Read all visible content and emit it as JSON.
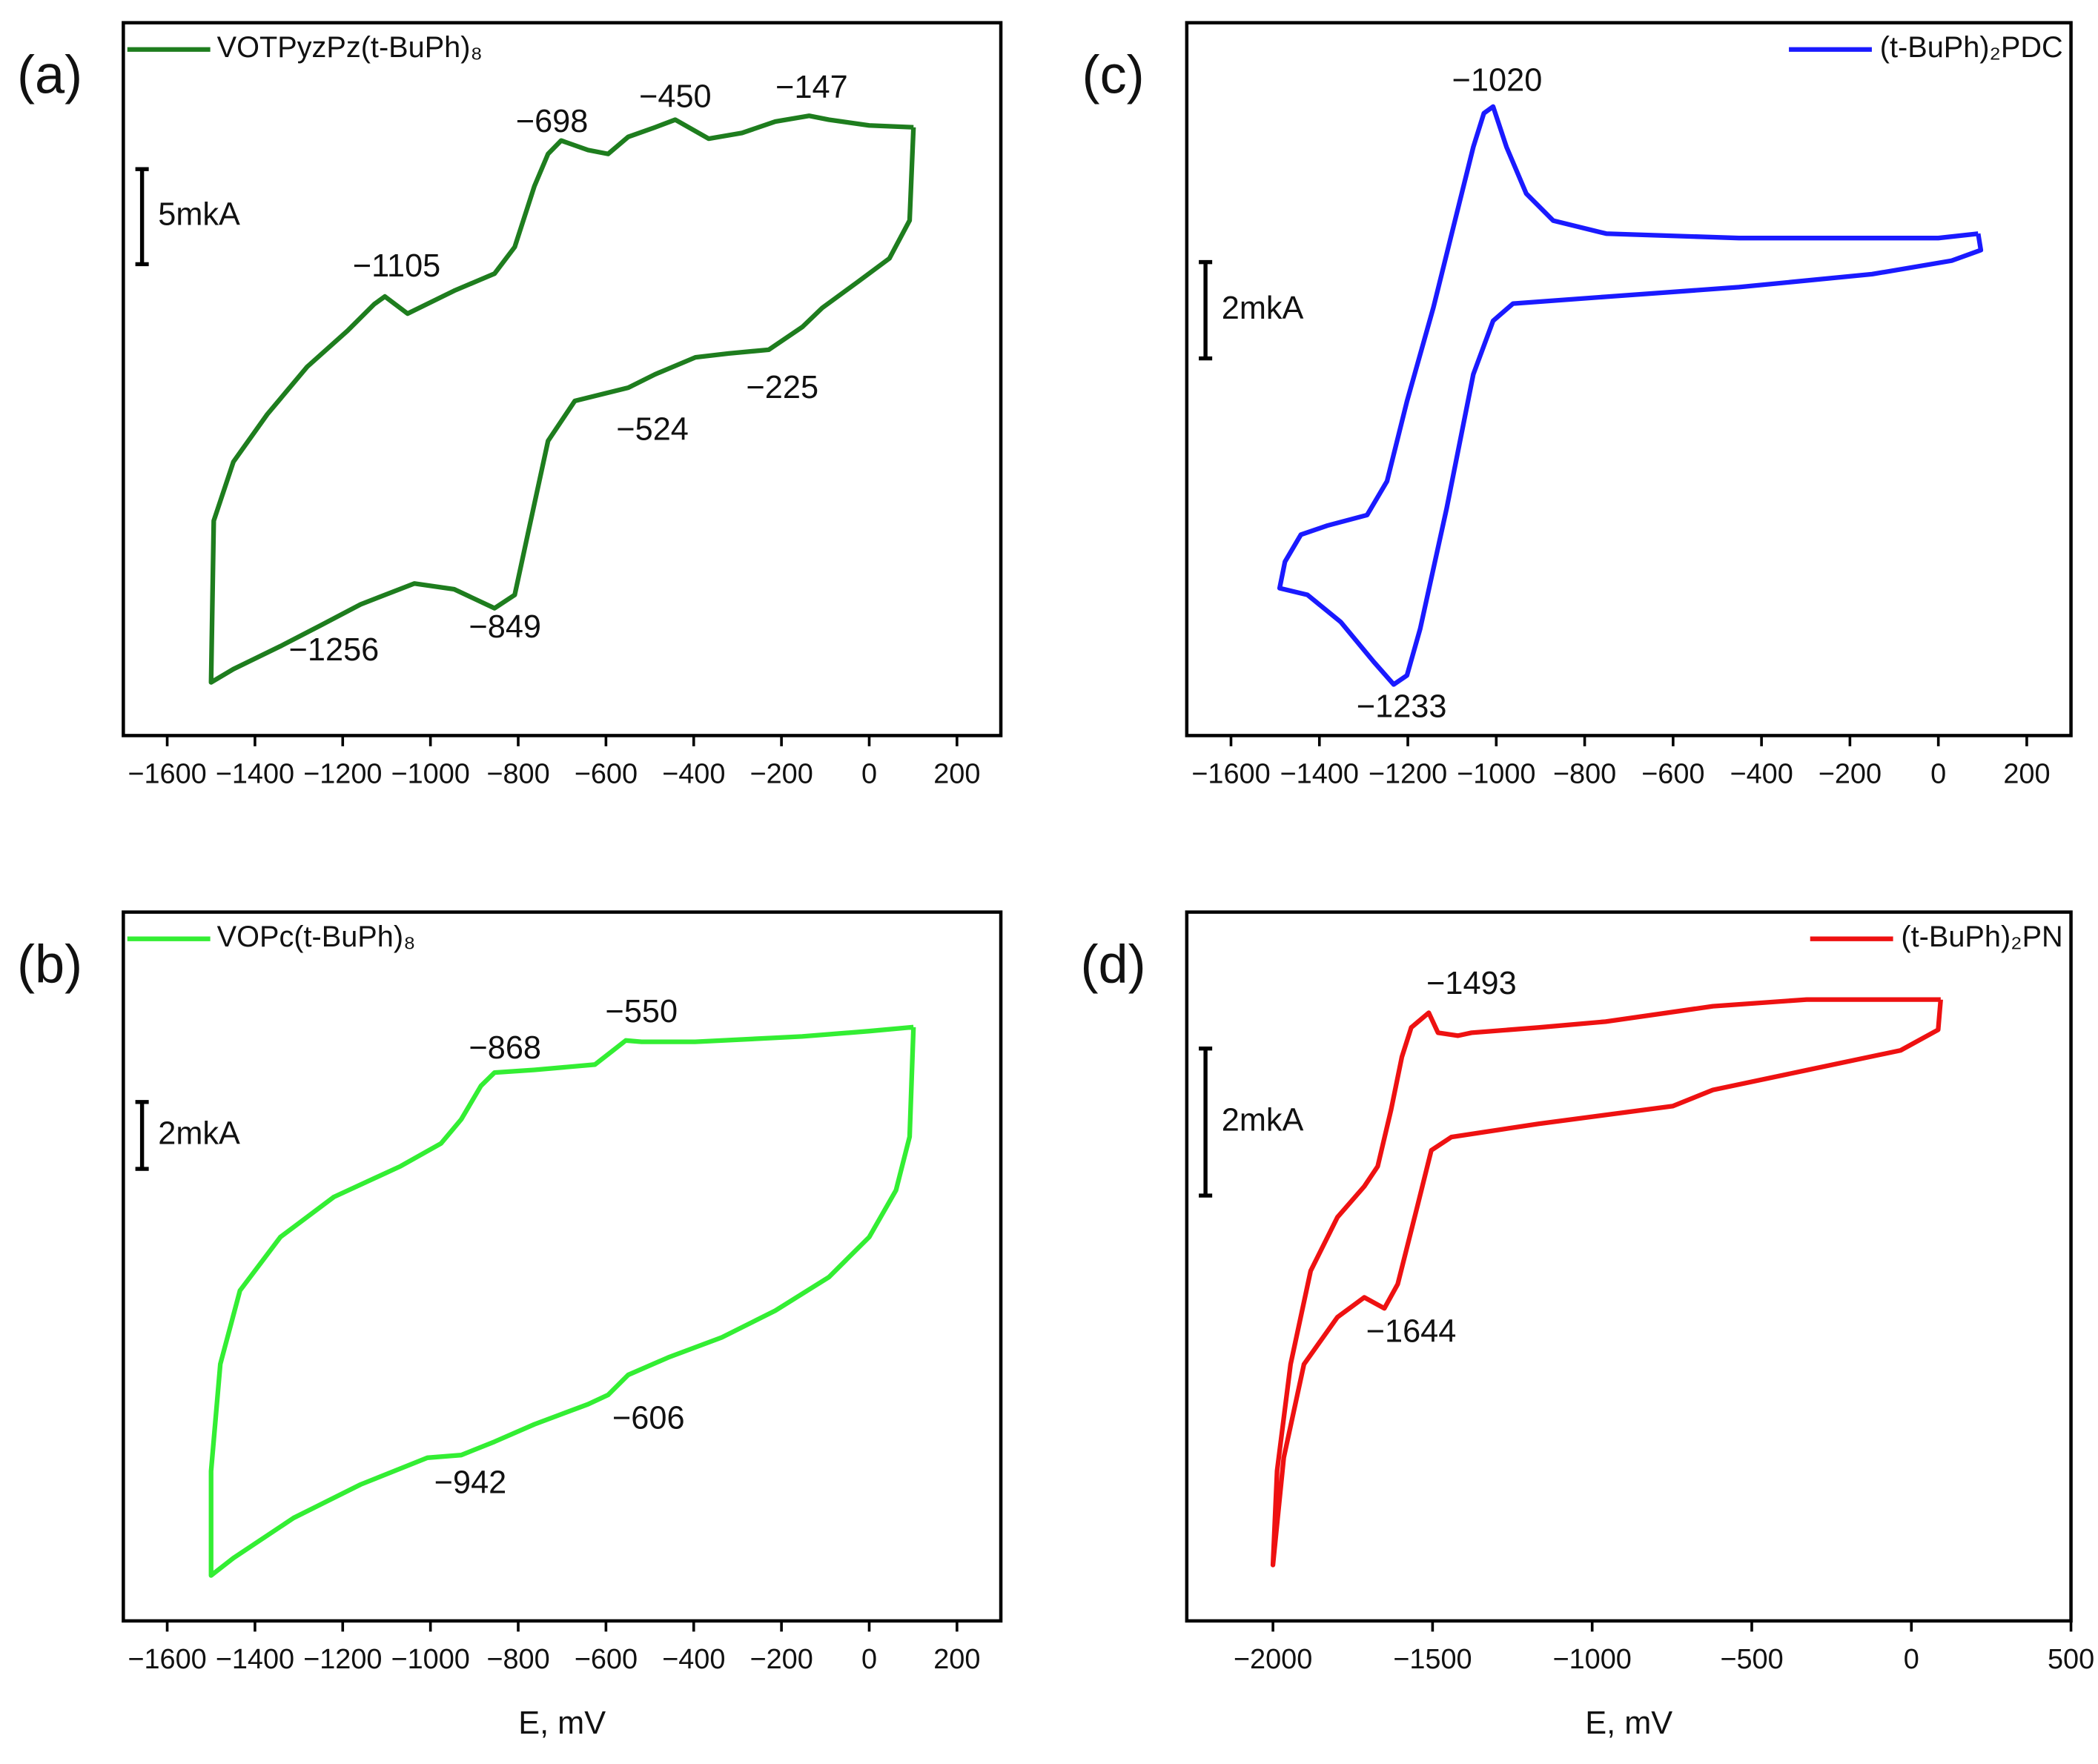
{
  "chart_data": [
    {
      "type": "line",
      "panel_label": "(a)",
      "legend": "upper left",
      "xlim": [
        -1700,
        300
      ],
      "xticks": [
        {
          "value": -1600,
          "label": "−1600"
        },
        {
          "value": -1400,
          "label": "−1400"
        },
        {
          "value": -1200,
          "label": "−1200"
        },
        {
          "value": -1000,
          "label": "−1000"
        },
        {
          "value": -800,
          "label": "−800"
        },
        {
          "value": -600,
          "label": "−600"
        },
        {
          "value": -400,
          "label": "−400"
        },
        {
          "value": -200,
          "label": "−200"
        },
        0,
        200
      ],
      "ylim": [
        0,
        37.5
      ],
      "scalebar": {
        "value": 5,
        "label": "5mkA"
      },
      "series": [
        {
          "name": "VOTPyzPz(t-BuPh)₈",
          "color": "#1e7d1e",
          "x": [
            101,
            0,
            -92,
            -137,
            -214,
            -290,
            -366,
            -442,
            -488,
            -549,
            -595,
            -641,
            -702,
            -732,
            -763,
            -808,
            -854,
            -946,
            -1052,
            -1104,
            -1128,
            -1189,
            -1281,
            -1372,
            -1449,
            -1494,
            -1500,
            -1449,
            -1342,
            -1250,
            -1159,
            -1037,
            -946,
            -854,
            -808,
            -778,
            -732,
            -671,
            -549,
            -488,
            -396,
            -320,
            -229,
            -152,
            -107,
            -30,
            46,
            92,
            101
          ],
          "values": [
            32.0,
            32.1,
            32.4,
            32.6,
            32.3,
            31.7,
            31.4,
            32.4,
            32.0,
            31.5,
            30.6,
            30.8,
            31.3,
            30.6,
            28.9,
            25.7,
            24.3,
            23.4,
            22.2,
            23.1,
            22.7,
            21.3,
            19.4,
            16.9,
            14.4,
            11.3,
            2.8,
            3.5,
            4.7,
            5.8,
            6.9,
            8.0,
            7.7,
            6.7,
            7.4,
            10.6,
            15.5,
            17.6,
            18.3,
            19.0,
            19.9,
            20.1,
            20.3,
            21.5,
            22.5,
            23.8,
            25.1,
            27.1,
            32.0
          ]
        }
      ],
      "annotations": [
        {
          "text": "−698",
          "x": -723,
          "y": 32.2
        },
        {
          "text": "−450",
          "x": -442,
          "y": 33.5
        },
        {
          "text": "−147",
          "x": -131,
          "y": 34.0
        },
        {
          "text": "−1105",
          "x": -1077,
          "y": 24.6
        },
        {
          "text": "−225",
          "x": -198,
          "y": 18.2
        },
        {
          "text": "−524",
          "x": -494,
          "y": 16.0
        },
        {
          "text": "−1256",
          "x": -1220,
          "y": 4.4
        },
        {
          "text": "−849",
          "x": -830,
          "y": 5.6
        }
      ]
    },
    {
      "type": "line",
      "panel_label": "(b)",
      "legend": "upper left",
      "xlabel": "E, mV",
      "xlim": [
        -1700,
        300
      ],
      "xticks": [
        {
          "value": -1600,
          "label": "−1600"
        },
        {
          "value": -1400,
          "label": "−1400"
        },
        {
          "value": -1200,
          "label": "−1200"
        },
        {
          "value": -1000,
          "label": "−1000"
        },
        {
          "value": -800,
          "label": "−800"
        },
        {
          "value": -600,
          "label": "−600"
        },
        {
          "value": -400,
          "label": "−400"
        },
        {
          "value": -200,
          "label": "−200"
        },
        0,
        200
      ],
      "ylim": [
        0,
        21.2
      ],
      "scalebar": {
        "value": 2,
        "label": "2mkA"
      },
      "series": [
        {
          "name": "VOPc(t-BuPh)₈",
          "color": "#33ee33",
          "x": [
            101,
            0,
            -153,
            -397,
            -519,
            -555,
            -586,
            -625,
            -763,
            -854,
            -885,
            -930,
            -976,
            -1068,
            -1220,
            -1342,
            -1434,
            -1479,
            -1500,
            -1500,
            -1449,
            -1312,
            -1159,
            -1007,
            -930,
            -854,
            -763,
            -641,
            -595,
            -549,
            -458,
            -336,
            -214,
            -92,
            0,
            61,
            92,
            101
          ],
          "values": [
            17.76,
            17.64,
            17.48,
            17.32,
            17.32,
            17.36,
            17.04,
            16.64,
            16.48,
            16.4,
            16.0,
            15.0,
            14.28,
            13.6,
            12.68,
            11.48,
            9.88,
            7.68,
            4.48,
            1.36,
            1.88,
            3.08,
            4.08,
            4.88,
            4.96,
            5.36,
            5.88,
            6.48,
            6.76,
            7.36,
            7.88,
            8.48,
            9.28,
            10.28,
            11.48,
            12.88,
            14.48,
            17.76
          ]
        }
      ],
      "annotations": [
        {
          "text": "−868",
          "x": -830,
          "y": 17.08
        },
        {
          "text": "−550",
          "x": -519,
          "y": 18.16
        },
        {
          "text": "−606",
          "x": -503,
          "y": 6.0
        },
        {
          "text": "−942",
          "x": -909,
          "y": 4.08
        }
      ]
    },
    {
      "type": "line",
      "panel_label": "(c)",
      "legend": "upper right",
      "xlim": [
        -1700,
        300
      ],
      "xticks": [
        {
          "value": -1600,
          "label": "−1600"
        },
        {
          "value": -1400,
          "label": "−1400"
        },
        {
          "value": -1200,
          "label": "−1200"
        },
        {
          "value": -1000,
          "label": "−1000"
        },
        {
          "value": -800,
          "label": "−800"
        },
        {
          "value": -600,
          "label": "−600"
        },
        {
          "value": -400,
          "label": "−400"
        },
        {
          "value": -200,
          "label": "−200"
        },
        0,
        200
      ],
      "ylim": [
        0,
        14.8
      ],
      "scalebar": {
        "value": 2,
        "label": "2mkA"
      },
      "series": [
        {
          "name": "(t-BuPh)₂PDC",
          "color": "#1a1aff",
          "x": [
            90,
            0,
            -451,
            -751,
            -871,
            -932,
            -977,
            -1007,
            -1028,
            -1052,
            -1097,
            -1142,
            -1202,
            -1247,
            -1292,
            -1382,
            -1442,
            -1478,
            -1490,
            -1427,
            -1352,
            -1277,
            -1232,
            -1202,
            -1172,
            -1112,
            -1052,
            -1007,
            -962,
            -751,
            -451,
            -150,
            30,
            96,
            90
          ],
          "values": [
            10.42,
            10.33,
            10.33,
            10.42,
            10.69,
            11.25,
            12.22,
            13.06,
            12.92,
            12.22,
            10.56,
            8.89,
            6.94,
            5.28,
            4.58,
            4.36,
            4.17,
            3.61,
            3.06,
            2.92,
            2.36,
            1.53,
            1.06,
            1.25,
            2.22,
            4.72,
            7.5,
            8.61,
            8.97,
            9.11,
            9.31,
            9.58,
            9.86,
            10.08,
            10.42
          ]
        }
      ],
      "annotations": [
        {
          "text": "−1020",
          "x": -998,
          "y": 13.56
        },
        {
          "text": "−1233",
          "x": -1214,
          "y": 0.56
        }
      ]
    },
    {
      "type": "line",
      "panel_label": "(d)",
      "legend": "upper right",
      "xlabel": "E, mV",
      "xlim": [
        -2270,
        500
      ],
      "xticks": [
        {
          "value": -2000,
          "label": "−2000"
        },
        {
          "value": -1500,
          "label": "−1500"
        },
        {
          "value": -1000,
          "label": "−1000"
        },
        {
          "value": -500,
          "label": "−500"
        },
        0,
        500
      ],
      "ylim": [
        0,
        9.64
      ],
      "scalebar": {
        "value": 2,
        "label": "2mkA"
      },
      "series": [
        {
          "name": "(t-BuPh)₂PN",
          "color": "#ee1111",
          "x": [
            92,
            -328,
            -622,
            -958,
            -1168,
            -1378,
            -1420,
            -1483,
            -1512,
            -1567,
            -1596,
            -1630,
            -1672,
            -1714,
            -1798,
            -1882,
            -1945,
            -1987,
            -2000,
            -1966,
            -1903,
            -1798,
            -1714,
            -1651,
            -1609,
            -1546,
            -1504,
            -1441,
            -1168,
            -748,
            -622,
            -328,
            -34,
            84,
            92
          ],
          "values": [
            8.45,
            8.45,
            8.36,
            8.15,
            8.07,
            8.0,
            7.96,
            8.0,
            8.27,
            8.07,
            7.67,
            6.95,
            6.18,
            5.91,
            5.49,
            4.76,
            3.49,
            2.04,
            0.76,
            2.22,
            3.49,
            4.13,
            4.4,
            4.25,
            4.58,
            5.67,
            6.4,
            6.58,
            6.76,
            7.0,
            7.22,
            7.49,
            7.76,
            8.04,
            8.45
          ]
        }
      ],
      "annotations": [
        {
          "text": "−1493",
          "x": -1378,
          "y": 8.64
        },
        {
          "text": "−1644",
          "x": -1567,
          "y": 3.91
        }
      ]
    }
  ]
}
